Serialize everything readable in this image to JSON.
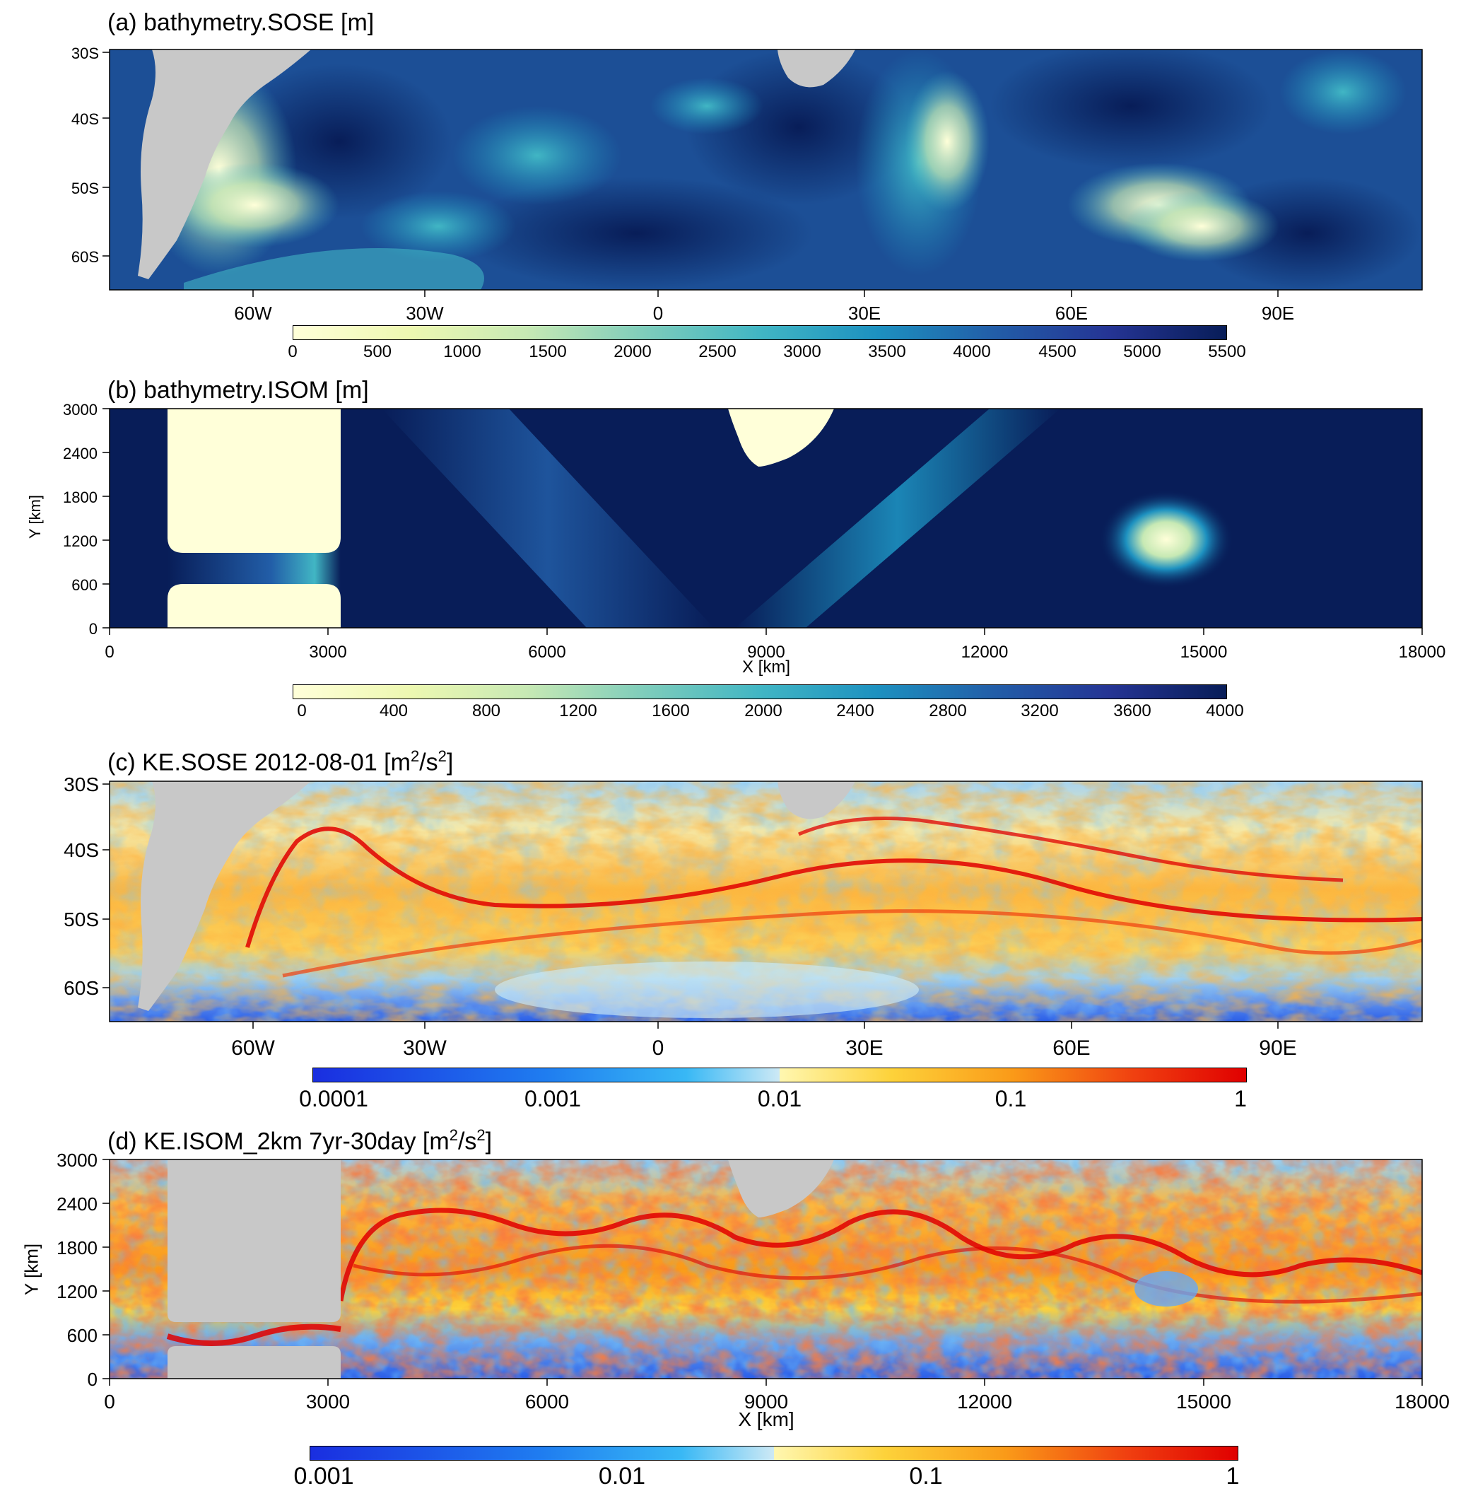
{
  "chart_data": [
    {
      "id": "a",
      "type": "heatmap",
      "title": "(a) bathymetry.SOSE [m]",
      "x_ticks": [
        "60W",
        "30W",
        "0",
        "30E",
        "60E",
        "90E"
      ],
      "x_tick_values": [
        -60,
        -30,
        0,
        30,
        60,
        90
      ],
      "xlim": [
        -75,
        115
      ],
      "y_ticks": [
        "30S",
        "40S",
        "50S",
        "60S"
      ],
      "y_tick_values": [
        -30,
        -40,
        -50,
        -60
      ],
      "ylim": [
        -65,
        -29.5
      ],
      "colorbar": {
        "scale": "linear",
        "ticks": [
          "0",
          "500",
          "1000",
          "1500",
          "2000",
          "2500",
          "3000",
          "3500",
          "4000",
          "4500",
          "5000",
          "5500"
        ],
        "range": [
          0,
          5500
        ],
        "colors": [
          "#ffffd9",
          "#edf8b1",
          "#c7e9b4",
          "#7fcdbb",
          "#41b6c4",
          "#1d91c0",
          "#225ea8",
          "#253494",
          "#081d58"
        ]
      },
      "land_color": "#c8c8c8"
    },
    {
      "id": "b",
      "type": "heatmap",
      "title": "(b) bathymetry.ISOM [m]",
      "xlabel": "X [km]",
      "ylabel": "Y [km]",
      "x_ticks": [
        "0",
        "3000",
        "6000",
        "9000",
        "12000",
        "15000",
        "18000"
      ],
      "x_tick_values": [
        0,
        3000,
        6000,
        9000,
        12000,
        15000,
        18000
      ],
      "xlim": [
        0,
        18000
      ],
      "y_ticks": [
        "3000",
        "2400",
        "1800",
        "1200",
        "600",
        "0"
      ],
      "y_tick_values": [
        3000,
        2400,
        1800,
        1200,
        600,
        0
      ],
      "ylim": [
        0,
        3000
      ],
      "colorbar": {
        "scale": "linear",
        "ticks": [
          "0",
          "400",
          "800",
          "1200",
          "1600",
          "2000",
          "2400",
          "2800",
          "3200",
          "3600",
          "4000"
        ],
        "range": [
          0,
          4000
        ],
        "colors": [
          "#ffffd9",
          "#edf8b1",
          "#c7e9b4",
          "#7fcdbb",
          "#41b6c4",
          "#1d91c0",
          "#225ea8",
          "#253494",
          "#081d58"
        ]
      }
    },
    {
      "id": "c",
      "type": "heatmap",
      "title_main": "(c) KE.SOSE 2012-08-01 [m",
      "title_sup1": "2",
      "title_mid": "/s",
      "title_sup2": "2",
      "title_end": "]",
      "x_ticks": [
        "60W",
        "30W",
        "0",
        "30E",
        "60E",
        "90E"
      ],
      "x_tick_values": [
        -60,
        -30,
        0,
        30,
        60,
        90
      ],
      "xlim": [
        -75,
        115
      ],
      "y_ticks": [
        "30S",
        "40S",
        "50S",
        "60S"
      ],
      "y_tick_values": [
        -30,
        -40,
        -50,
        -60
      ],
      "ylim": [
        -65,
        -29.5
      ],
      "colorbar": {
        "scale": "log",
        "ticks": [
          "0.0001",
          "0.001",
          "0.01",
          "0.1",
          "1"
        ],
        "range": [
          0.0001,
          1
        ],
        "colors": [
          "#1a2ee0",
          "#1f7df0",
          "#38b8f5",
          "#cde9f5",
          "#fff7b0",
          "#fdd23a",
          "#fa9a18",
          "#f04010",
          "#e00000"
        ]
      },
      "land_color": "#c8c8c8"
    },
    {
      "id": "d",
      "type": "heatmap",
      "title_main": "(d) KE.ISOM_2km 7yr-30day [m",
      "title_sup1": "2",
      "title_mid": "/s",
      "title_sup2": "2",
      "title_end": "]",
      "xlabel": "X [km]",
      "ylabel": "Y [km]",
      "x_ticks": [
        "0",
        "3000",
        "6000",
        "9000",
        "12000",
        "15000",
        "18000"
      ],
      "x_tick_values": [
        0,
        3000,
        6000,
        9000,
        12000,
        15000,
        18000
      ],
      "xlim": [
        0,
        18000
      ],
      "y_ticks": [
        "3000",
        "2400",
        "1800",
        "1200",
        "600",
        "0"
      ],
      "y_tick_values": [
        3000,
        2400,
        1800,
        1200,
        600,
        0
      ],
      "ylim": [
        0,
        3000
      ],
      "colorbar": {
        "scale": "log",
        "ticks": [
          "0.001",
          "0.01",
          "0.1",
          "1"
        ],
        "range": [
          0.001,
          1
        ],
        "colors": [
          "#1a2ee0",
          "#1f7df0",
          "#38b8f5",
          "#cde9f5",
          "#fff7b0",
          "#fdd23a",
          "#fa9a18",
          "#f04010",
          "#e00000"
        ]
      },
      "land_color": "#c8c8c8"
    }
  ]
}
